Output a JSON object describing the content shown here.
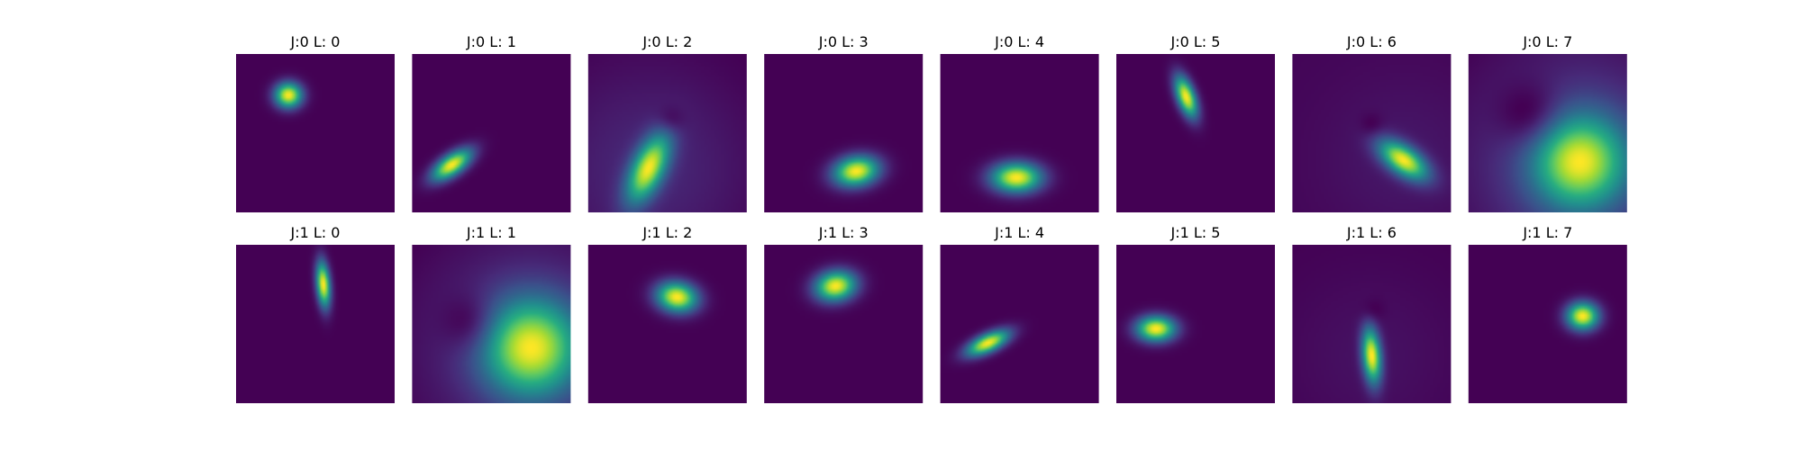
{
  "chart_data": {
    "type": "heatmap",
    "colormap": "viridis",
    "axes_visible": false,
    "grid": false,
    "rows": 2,
    "cols": 8,
    "panels": [
      {
        "title": "J:0 L: 0",
        "peak": [
          0.33,
          0.26
        ],
        "sigma": [
          0.06,
          0.055
        ],
        "angle": 0
      },
      {
        "title": "J:0 L: 1",
        "peak": [
          0.25,
          0.7
        ],
        "sigma": [
          0.1,
          0.045
        ],
        "angle": -35
      },
      {
        "title": "J:0 L: 2",
        "peak": [
          0.38,
          0.72
        ],
        "sigma": [
          0.16,
          0.07
        ],
        "angle": -65,
        "neg": [
          0.52,
          0.42
        ],
        "neg_sigma": 0.06,
        "halo": 0.16
      },
      {
        "title": "J:0 L: 3",
        "peak": [
          0.58,
          0.74
        ],
        "sigma": [
          0.1,
          0.065
        ],
        "angle": -10
      },
      {
        "title": "J:0 L: 4",
        "peak": [
          0.48,
          0.78
        ],
        "sigma": [
          0.11,
          0.065
        ],
        "angle": 0
      },
      {
        "title": "J:0 L: 5",
        "peak": [
          0.44,
          0.27
        ],
        "sigma": [
          0.095,
          0.04
        ],
        "angle": 70
      },
      {
        "title": "J:0 L: 6",
        "peak": [
          0.7,
          0.67
        ],
        "sigma": [
          0.12,
          0.06
        ],
        "angle": 35,
        "neg": [
          0.5,
          0.45
        ],
        "neg_sigma": 0.05,
        "halo": 0.06
      },
      {
        "title": "J:0 L: 7",
        "peak": [
          0.7,
          0.68
        ],
        "sigma": [
          0.2,
          0.2
        ],
        "angle": 0,
        "neg": [
          0.4,
          0.4
        ],
        "neg_sigma": 0.14,
        "halo": 0.32
      },
      {
        "title": "J:1 L: 0",
        "peak": [
          0.55,
          0.25
        ],
        "sigma": [
          0.1,
          0.03
        ],
        "angle": 85
      },
      {
        "title": "J:1 L: 1",
        "peak": [
          0.75,
          0.65
        ],
        "sigma": [
          0.21,
          0.21
        ],
        "angle": 0,
        "neg": [
          0.38,
          0.5
        ],
        "neg_sigma": 0.12,
        "halo": 0.25
      },
      {
        "title": "J:1 L: 2",
        "peak": [
          0.56,
          0.33
        ],
        "sigma": [
          0.09,
          0.065
        ],
        "angle": 10
      },
      {
        "title": "J:1 L: 3",
        "peak": [
          0.45,
          0.26
        ],
        "sigma": [
          0.09,
          0.065
        ],
        "angle": -10
      },
      {
        "title": "J:1 L: 4",
        "peak": [
          0.3,
          0.62
        ],
        "sigma": [
          0.1,
          0.04
        ],
        "angle": -25
      },
      {
        "title": "J:1 L: 5",
        "peak": [
          0.25,
          0.53
        ],
        "sigma": [
          0.085,
          0.055
        ],
        "angle": 0
      },
      {
        "title": "J:1 L: 6",
        "peak": [
          0.5,
          0.7
        ],
        "sigma": [
          0.12,
          0.04
        ],
        "angle": 85,
        "neg": [
          0.5,
          0.42
        ],
        "neg_sigma": 0.05,
        "halo": 0.05
      },
      {
        "title": "J:1 L: 7",
        "peak": [
          0.72,
          0.45
        ],
        "sigma": [
          0.07,
          0.06
        ],
        "angle": 0
      }
    ]
  }
}
